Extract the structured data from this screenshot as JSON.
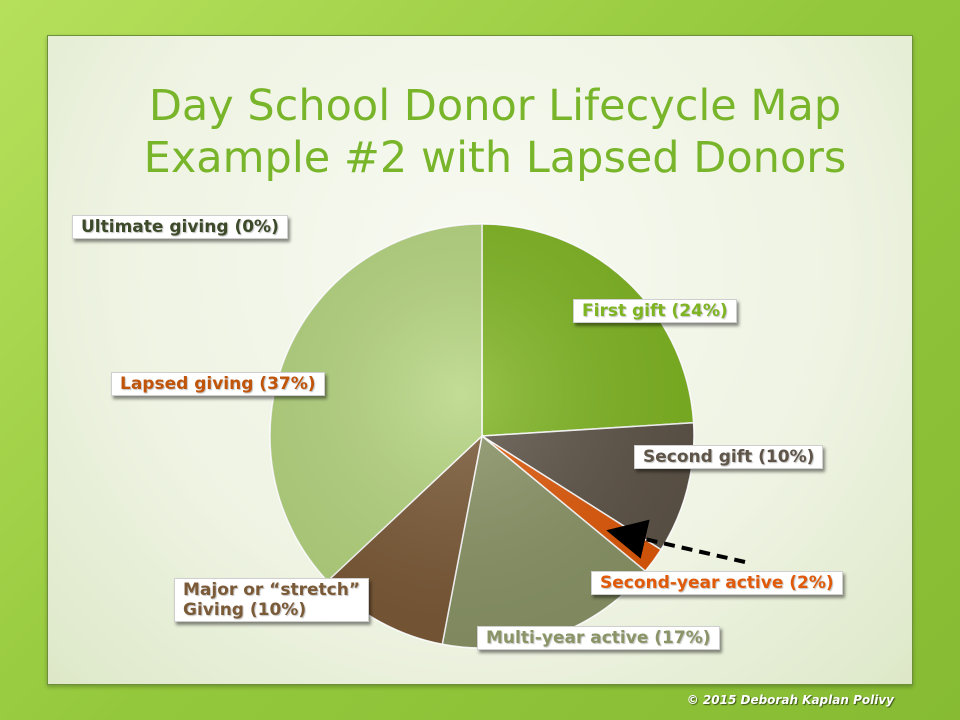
{
  "title": {
    "line1": "Day School Donor Lifecycle Map",
    "line2": "Example #2 with Lapsed Donors"
  },
  "chart_data": {
    "type": "pie",
    "title": "Day School Donor Lifecycle Map Example #2 with Lapsed Donors",
    "slices": [
      {
        "label": "First gift (24%)",
        "value": 24,
        "color": "#7fb522"
      },
      {
        "label": "Second gift (10%)",
        "value": 10,
        "color": "#5e5448"
      },
      {
        "label": "Second-year active (2%)",
        "value": 2,
        "color": "#e05a0a"
      },
      {
        "label": "Multi-year active (17%)",
        "value": 17,
        "color": "#8a9466"
      },
      {
        "label": "Major or “stretch” Giving (10%)",
        "value": 10,
        "color": "#7b5a37"
      },
      {
        "label": "Lapsed giving (37%)",
        "value": 37,
        "color": "#b5d57f"
      },
      {
        "label": "Ultimate giving (0%)",
        "value": 0,
        "color": "#a8cc6a"
      }
    ]
  },
  "labels": {
    "ultimate": "Ultimate giving (0%)",
    "first": "First gift (24%)",
    "lapsed": "Lapsed giving (37%)",
    "second": "Second gift (10%)",
    "second_year": "Second-year active (2%)",
    "major_line1": "Major or “stretch”",
    "major_line2": "Giving (10%)",
    "multi_year": "Multi-year active (17%)"
  },
  "label_colors": {
    "ultimate": "#3d4a2a",
    "first": "#7fb522",
    "lapsed": "#c0550a",
    "second": "#5e5448",
    "second_year": "#e05a0a",
    "major": "#7b5a37",
    "multi_year": "#8a9466"
  },
  "footer": "© 2015 Deborah Kaplan Polivy"
}
